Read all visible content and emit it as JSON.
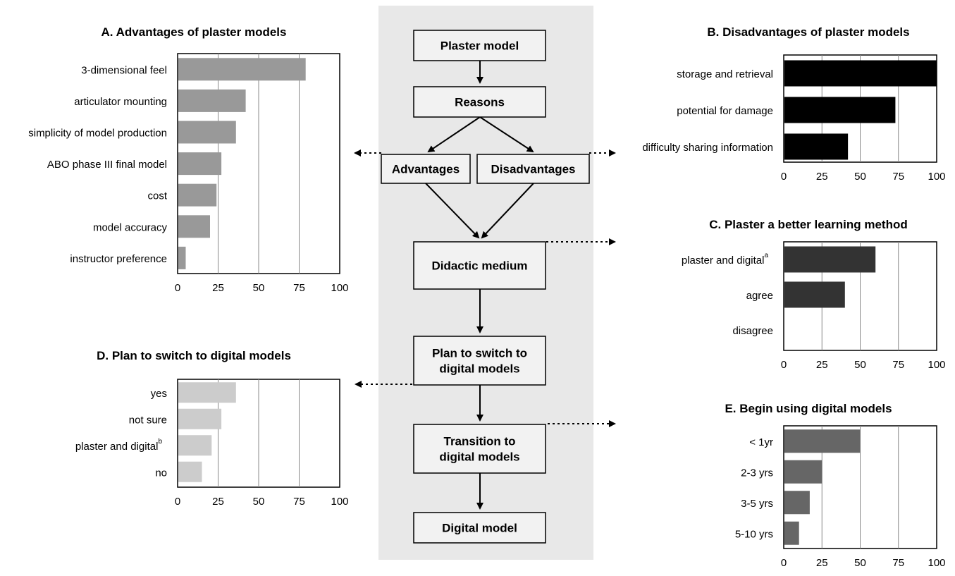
{
  "flow": {
    "nodes": {
      "plaster_model": [
        "Plaster model"
      ],
      "reasons": [
        "Reasons"
      ],
      "advantages": [
        "Advantages"
      ],
      "disadvantages": [
        "Disadvantages"
      ],
      "didactic": [
        "Didactic medium"
      ],
      "plan": [
        "Plan to switch to",
        "digital models"
      ],
      "transition": [
        "Transition to",
        "digital models"
      ],
      "digital_model": [
        "Digital model"
      ]
    }
  },
  "colors": {
    "panel_bg": "#e8e8e8",
    "chart_a": "#999999",
    "chart_b": "#000000",
    "chart_c": "#333333",
    "chart_d": "#cccccc",
    "chart_e": "#666666"
  },
  "chart_data": [
    {
      "id": "A",
      "type": "bar",
      "orientation": "horizontal",
      "title": "A. Advantages of plaster models",
      "categories": [
        "3-dimensional feel",
        "articulator mounting",
        "simplicity of model production",
        "ABO phase III final model",
        "cost",
        "model accuracy",
        "instructor preference"
      ],
      "category_superscripts": [
        "",
        "",
        "",
        "",
        "",
        "",
        ""
      ],
      "values": [
        79,
        42,
        36,
        27,
        24,
        20,
        5
      ],
      "xlim": [
        0,
        100
      ],
      "ticks": [
        "0",
        "25",
        "50",
        "75",
        "100"
      ],
      "grid": true
    },
    {
      "id": "B",
      "type": "bar",
      "orientation": "horizontal",
      "title": "B. Disadvantages of plaster models",
      "categories": [
        "storage and retrieval",
        "potential for damage",
        "difficulty sharing information"
      ],
      "category_superscripts": [
        "",
        "",
        ""
      ],
      "values": [
        100,
        73,
        42
      ],
      "xlim": [
        0,
        100
      ],
      "ticks": [
        "0",
        "25",
        "50",
        "75",
        "100"
      ],
      "grid": true
    },
    {
      "id": "C",
      "type": "bar",
      "orientation": "horizontal",
      "title": "C. Plaster a better learning method",
      "categories": [
        "plaster and digital",
        "agree",
        "disagree"
      ],
      "category_superscripts": [
        "a",
        "",
        ""
      ],
      "values": [
        60,
        40,
        0
      ],
      "xlim": [
        0,
        100
      ],
      "ticks": [
        "0",
        "25",
        "50",
        "75",
        "100"
      ],
      "grid": true
    },
    {
      "id": "D",
      "type": "bar",
      "orientation": "horizontal",
      "title": "D. Plan to switch to digital models",
      "categories": [
        "yes",
        "not sure",
        "plaster and digital",
        "no"
      ],
      "category_superscripts": [
        "",
        "",
        "b",
        ""
      ],
      "values": [
        36,
        27,
        21,
        15
      ],
      "xlim": [
        0,
        100
      ],
      "ticks": [
        "0",
        "25",
        "50",
        "75",
        "100"
      ],
      "grid": true
    },
    {
      "id": "E",
      "type": "bar",
      "orientation": "horizontal",
      "title": "E. Begin using digital models",
      "categories": [
        "< 1yr",
        "2-3 yrs",
        "3-5 yrs",
        "5-10 yrs"
      ],
      "category_superscripts": [
        "",
        "",
        "",
        ""
      ],
      "values": [
        50,
        25,
        17,
        10
      ],
      "xlim": [
        0,
        100
      ],
      "ticks": [
        "0",
        "25",
        "50",
        "75",
        "100"
      ],
      "grid": true
    }
  ]
}
